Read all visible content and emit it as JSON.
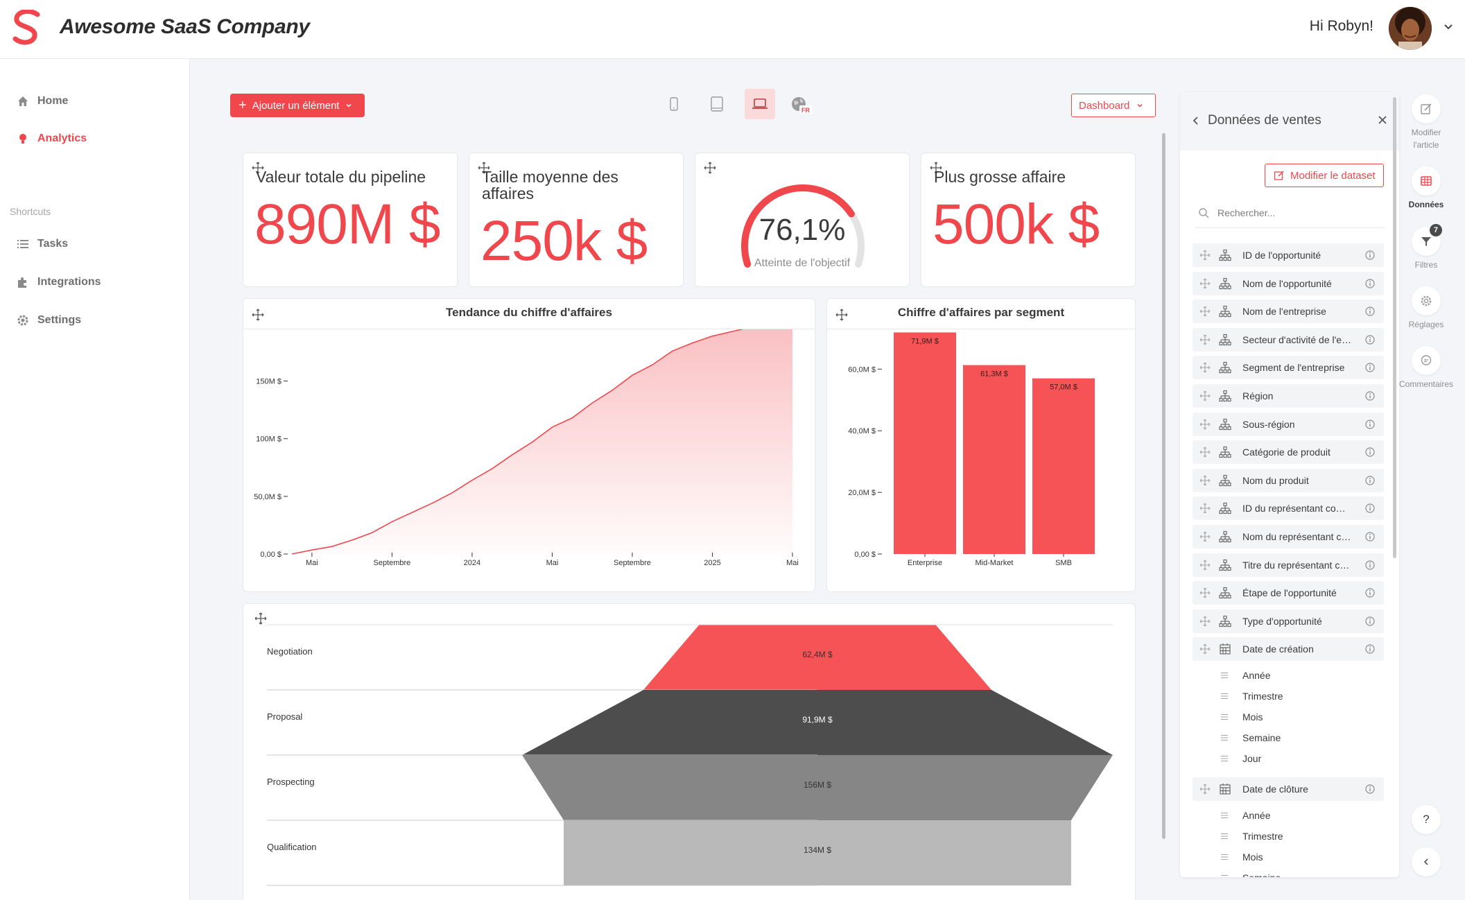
{
  "app": {
    "name": "Awesome SaaS Company",
    "greeting": "Hi Robyn!"
  },
  "sidebar": {
    "items": [
      {
        "label": "Home"
      },
      {
        "label": "Analytics"
      }
    ],
    "shortcuts_label": "Shortcuts",
    "shortcuts": [
      {
        "label": "Tasks"
      },
      {
        "label": "Integrations"
      },
      {
        "label": "Settings"
      }
    ]
  },
  "toolbar": {
    "add_label": "Ajouter un élément",
    "dashboard_label": "Dashboard",
    "lang_code": "FR"
  },
  "kpis": [
    {
      "title": "Valeur totale du pipeline",
      "value": "890M $"
    },
    {
      "title": "Taille moyenne des affaires",
      "value": "250k $"
    },
    {
      "title": "Plus grosse affaire",
      "value": "500k $"
    }
  ],
  "gauge": {
    "value": "76,1%",
    "label": "Atteinte de l'objectif",
    "fraction": 0.761
  },
  "chart_data": [
    {
      "type": "area",
      "title": "Tendance du chiffre d'affaires",
      "y_ticks": [
        {
          "label": "0,00 $",
          "value": 0
        },
        {
          "label": "50,0M $",
          "value": 50
        },
        {
          "label": "100M $",
          "value": 100
        },
        {
          "label": "150M $",
          "value": 150
        }
      ],
      "ylim": [
        0,
        190
      ],
      "x_ticks": [
        "Mai",
        "Septembre",
        "2024",
        "Mai",
        "Septembre",
        "2025",
        "Mai"
      ],
      "x_tick_index": [
        1,
        5,
        9,
        13,
        17,
        21,
        25
      ],
      "values": [
        0,
        3.5,
        6.5,
        12,
        18.5,
        28,
        36,
        44,
        53,
        64,
        74,
        86,
        97,
        110,
        118,
        131,
        142,
        155,
        164,
        176,
        183,
        189,
        193,
        197,
        200,
        201
      ]
    },
    {
      "type": "bar",
      "title": "Chiffre d'affaires par segment",
      "categories": [
        "Enterprise",
        "Mid-Market",
        "SMB"
      ],
      "values": [
        71.9,
        61.3,
        57.0
      ],
      "labels": [
        "71,9M $",
        "61,3M $",
        "57,0M $"
      ],
      "y_ticks": [
        {
          "label": "0,00 $",
          "value": 0
        },
        {
          "label": "20,0M $",
          "value": 20
        },
        {
          "label": "40,0M $",
          "value": 40
        },
        {
          "label": "60,0M $",
          "value": 60
        }
      ],
      "ylim": [
        0,
        72
      ]
    },
    {
      "type": "funnel",
      "stages": [
        {
          "name": "Negotiation",
          "value": 62.4,
          "label": "62,4M $",
          "color": "#f55355"
        },
        {
          "name": "Proposal",
          "value": 91.9,
          "label": "91,9M $",
          "color": "#4d4d4d"
        },
        {
          "name": "Prospecting",
          "value": 156,
          "label": "156M $",
          "color": "#868686"
        },
        {
          "name": "Qualification",
          "value": 134,
          "label": "134M $",
          "color": "#b9b9b9"
        }
      ]
    }
  ],
  "panel": {
    "title": "Données de ventes",
    "edit_dataset": "Modifier le dataset",
    "search_placeholder": "Rechercher...",
    "fields": [
      "ID de l'opportunité",
      "Nom de l'opportunité",
      "Nom de l'entreprise",
      "Secteur d'activité de l'entreprise",
      "Segment de l'entreprise",
      "Région",
      "Sous-région",
      "Catégorie de produit",
      "Nom du produit",
      "ID du représentant commercial",
      "Nom du représentant commercial",
      "Titre du représentant commercial",
      "Étape de l'opportunité",
      "Type d'opportunité"
    ],
    "date_fields": [
      {
        "label": "Date de création",
        "subs": [
          "Année",
          "Trimestre",
          "Mois",
          "Semaine",
          "Jour"
        ]
      },
      {
        "label": "Date de clôture",
        "subs": [
          "Année",
          "Trimestre",
          "Mois",
          "Semaine"
        ]
      }
    ]
  },
  "rail": [
    {
      "label": "Modifier l'article"
    },
    {
      "label": "Données"
    },
    {
      "label": "Filtres",
      "badge": "7"
    },
    {
      "label": "Réglages"
    },
    {
      "label": "Commentaires"
    }
  ],
  "help_label": "?",
  "colors": {
    "accent": "#f0474d"
  }
}
